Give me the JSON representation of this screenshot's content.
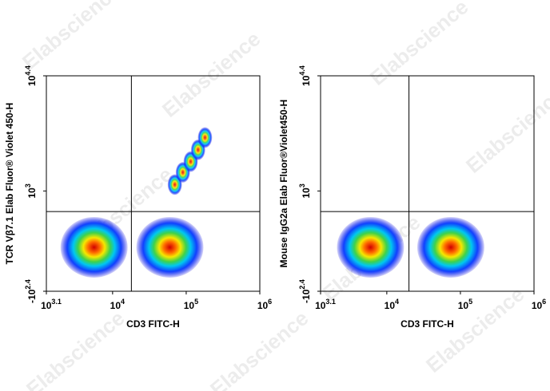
{
  "watermark": "Elabscience",
  "chart_data": [
    {
      "type": "scatter",
      "x_label": "CD3 FITC-H",
      "y_label": "TCR Vβ7.1 Elab Fluor® Violet 450-H",
      "xlim": [
        1259,
        1000000
      ],
      "ylim": [
        -251,
        25119
      ],
      "xticks": [
        {
          "value": 1259,
          "label": "10",
          "sup": "3.1"
        },
        {
          "value": 10000,
          "label": "10",
          "sup": "4"
        },
        {
          "value": 100000,
          "label": "10",
          "sup": "5"
        },
        {
          "value": 1000000,
          "label": "10",
          "sup": "6"
        }
      ],
      "yticks": [
        {
          "value": -251,
          "label": "-10",
          "sup": "2.4"
        },
        {
          "value": 1000,
          "label": "10",
          "sup": "3"
        },
        {
          "value": 25119,
          "label": "10",
          "sup": "4.4"
        }
      ],
      "gate_x": 18000,
      "gate_y": 540,
      "x": [
        5600,
        60000,
        70000,
        90000,
        115000,
        145000,
        180000
      ],
      "values": [
        120,
        120,
        1200,
        1700,
        2300,
        3200,
        4500
      ]
    },
    {
      "type": "scatter",
      "x_label": "CD3 FITC-H",
      "y_label": "Mouse IgG2a Elab Fluor®Violet450-H",
      "xlim": [
        1259,
        1000000
      ],
      "ylim": [
        -251,
        25119
      ],
      "xticks": [
        {
          "value": 1259,
          "label": "10",
          "sup": "3.1"
        },
        {
          "value": 10000,
          "label": "10",
          "sup": "4"
        },
        {
          "value": 100000,
          "label": "10",
          "sup": "5"
        },
        {
          "value": 1000000,
          "label": "10",
          "sup": "6"
        }
      ],
      "yticks": [
        {
          "value": -251,
          "label": "-10",
          "sup": "2.4"
        },
        {
          "value": 1000,
          "label": "10",
          "sup": "3"
        },
        {
          "value": 25119,
          "label": "10",
          "sup": "4.4"
        }
      ],
      "gate_x": 20000,
      "gate_y": 540,
      "x": [
        6000,
        74000
      ],
      "values": [
        120,
        120
      ]
    }
  ]
}
